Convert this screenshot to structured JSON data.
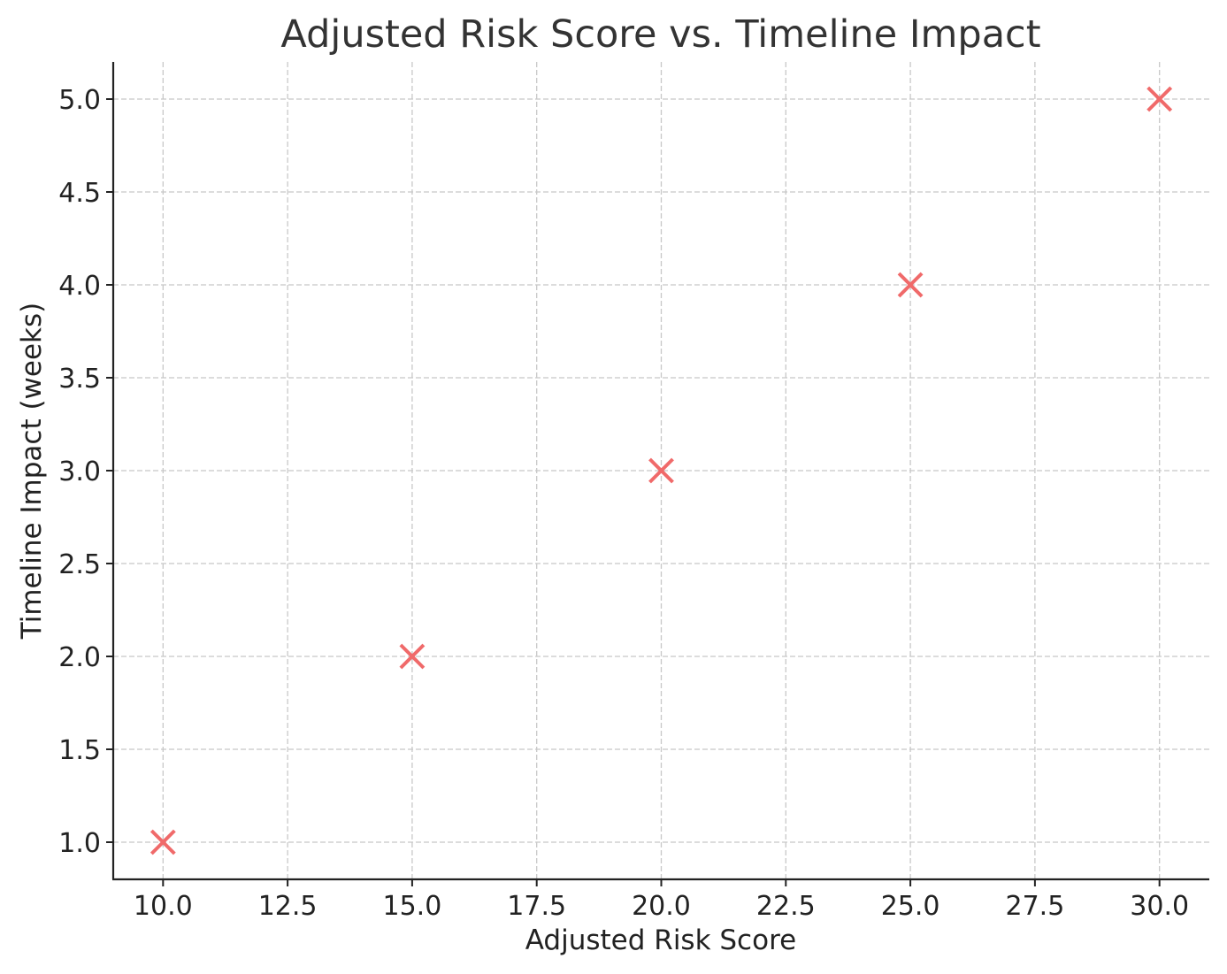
{
  "chart_data": {
    "type": "scatter",
    "title": "Adjusted Risk Score vs. Timeline Impact",
    "xlabel": "Adjusted Risk Score",
    "ylabel": "Timeline Impact (weeks)",
    "x": [
      10,
      15,
      20,
      25,
      30
    ],
    "y": [
      1,
      2,
      3,
      4,
      5
    ],
    "xlim": [
      9,
      31
    ],
    "ylim": [
      0.8,
      5.2
    ],
    "xticks": [
      "10.0",
      "12.5",
      "15.0",
      "17.5",
      "20.0",
      "22.5",
      "25.0",
      "27.5",
      "30.0"
    ],
    "yticks": [
      "1.0",
      "1.5",
      "2.0",
      "2.5",
      "3.0",
      "3.5",
      "4.0",
      "4.5",
      "5.0"
    ],
    "grid": true,
    "marker": "x",
    "colors": {
      "marker": "#f06a6a"
    }
  }
}
